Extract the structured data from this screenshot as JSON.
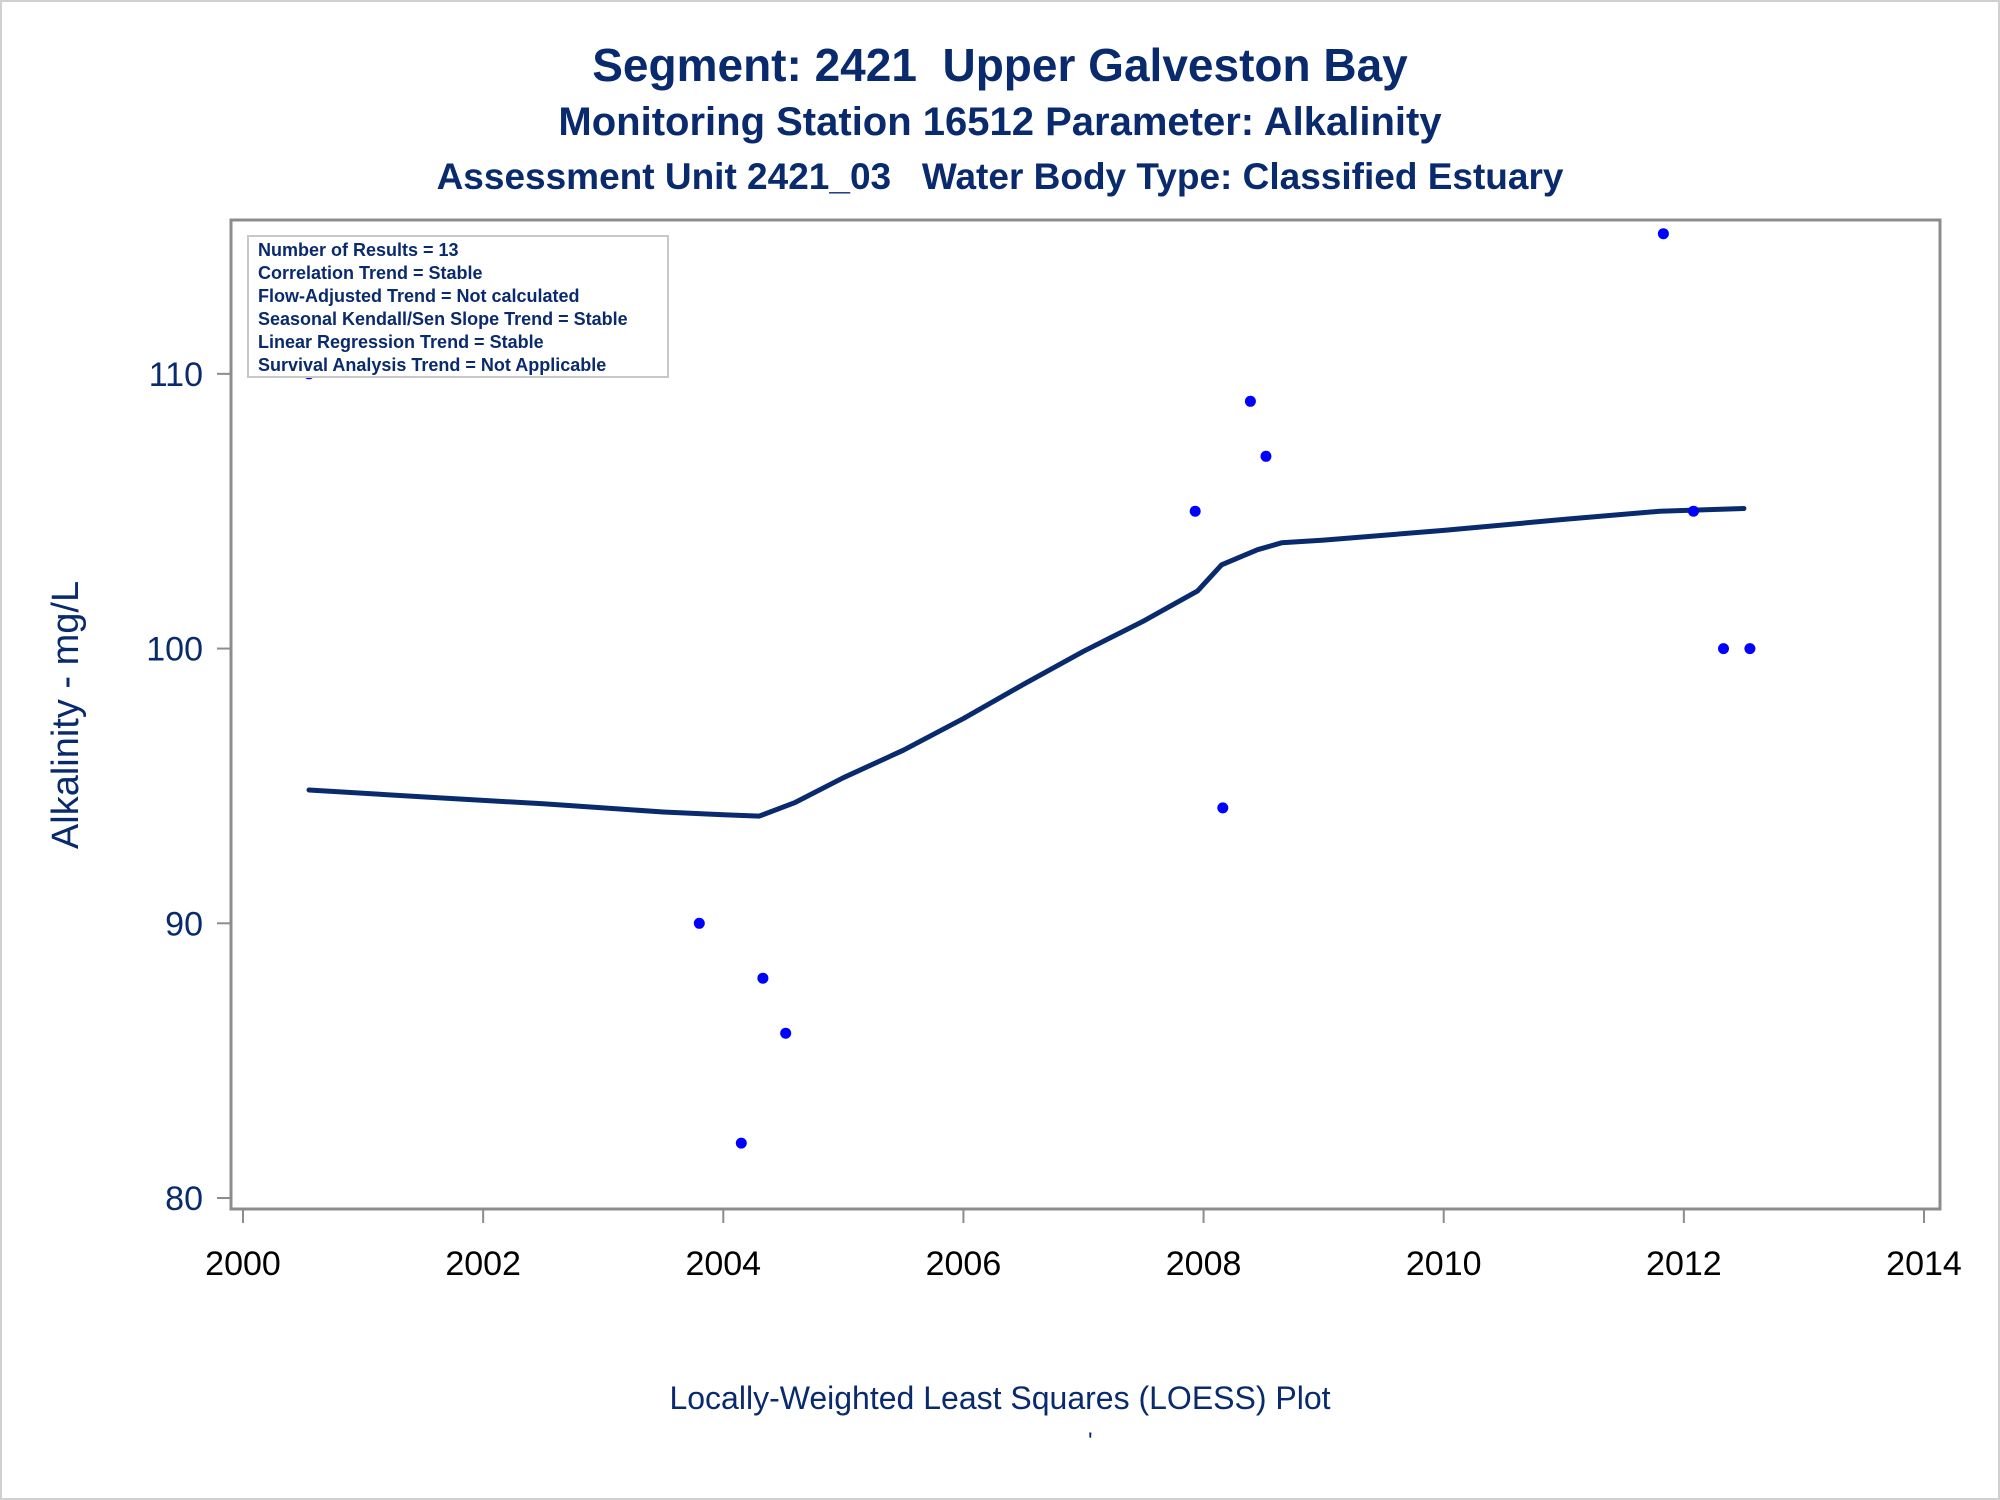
{
  "chart_data": {
    "type": "scatter",
    "title": "Segment: 2421  Upper Galveston Bay",
    "subtitle": "Monitoring Station 16512 Parameter: Alkalinity",
    "subtitle2": "Assessment Unit 2421_03   Water Body Type: Classified Estuary",
    "xlabel": "",
    "ylabel": "Alkalinity - mg/L",
    "footnote": "Locally-Weighted Least Squares (LOESS) Plot",
    "footnote_mark": "'",
    "xlim": [
      2000,
      2014
    ],
    "ylim": [
      79.6,
      115.6
    ],
    "x_ticks": [
      2000,
      2002,
      2004,
      2006,
      2008,
      2010,
      2012,
      2014
    ],
    "y_ticks": [
      80,
      90,
      100,
      110
    ],
    "grid": false,
    "legend_position": "top-left",
    "info_box": [
      "Number of Results = 13",
      "Correlation Trend = Stable",
      "Flow-Adjusted Trend = Not calculated",
      "Seasonal Kendall/Sen Slope Trend = Stable",
      "Linear Regression Trend = Stable",
      "Survival Analysis Trend = Not Applicable"
    ],
    "points": [
      {
        "x": 2000.55,
        "y": 110.0
      },
      {
        "x": 2003.8,
        "y": 90.0
      },
      {
        "x": 2004.15,
        "y": 82.0
      },
      {
        "x": 2004.33,
        "y": 88.0
      },
      {
        "x": 2004.52,
        "y": 86.0
      },
      {
        "x": 2007.93,
        "y": 105.0
      },
      {
        "x": 2008.16,
        "y": 94.2
      },
      {
        "x": 2008.39,
        "y": 109.0
      },
      {
        "x": 2008.52,
        "y": 107.0
      },
      {
        "x": 2011.83,
        "y": 115.1
      },
      {
        "x": 2012.08,
        "y": 105.0
      },
      {
        "x": 2012.33,
        "y": 100.0
      },
      {
        "x": 2012.55,
        "y": 100.0
      }
    ],
    "loess": [
      {
        "x": 2000.55,
        "y": 94.85
      },
      {
        "x": 2001.5,
        "y": 94.6
      },
      {
        "x": 2002.5,
        "y": 94.35
      },
      {
        "x": 2003.5,
        "y": 94.05
      },
      {
        "x": 2004.0,
        "y": 93.95
      },
      {
        "x": 2004.3,
        "y": 93.9
      },
      {
        "x": 2004.6,
        "y": 94.4
      },
      {
        "x": 2005.0,
        "y": 95.3
      },
      {
        "x": 2005.5,
        "y": 96.3
      },
      {
        "x": 2006.0,
        "y": 97.45
      },
      {
        "x": 2006.5,
        "y": 98.7
      },
      {
        "x": 2007.0,
        "y": 99.9
      },
      {
        "x": 2007.5,
        "y": 101.0
      },
      {
        "x": 2007.95,
        "y": 102.1
      },
      {
        "x": 2008.15,
        "y": 103.05
      },
      {
        "x": 2008.45,
        "y": 103.6
      },
      {
        "x": 2008.65,
        "y": 103.85
      },
      {
        "x": 2009.0,
        "y": 103.95
      },
      {
        "x": 2010.0,
        "y": 104.3
      },
      {
        "x": 2011.0,
        "y": 104.7
      },
      {
        "x": 2011.8,
        "y": 105.0
      },
      {
        "x": 2012.5,
        "y": 105.1
      }
    ],
    "colors": {
      "points": "#0000ff",
      "line": "#0a2a6e",
      "text": "#0a2a6e"
    }
  }
}
